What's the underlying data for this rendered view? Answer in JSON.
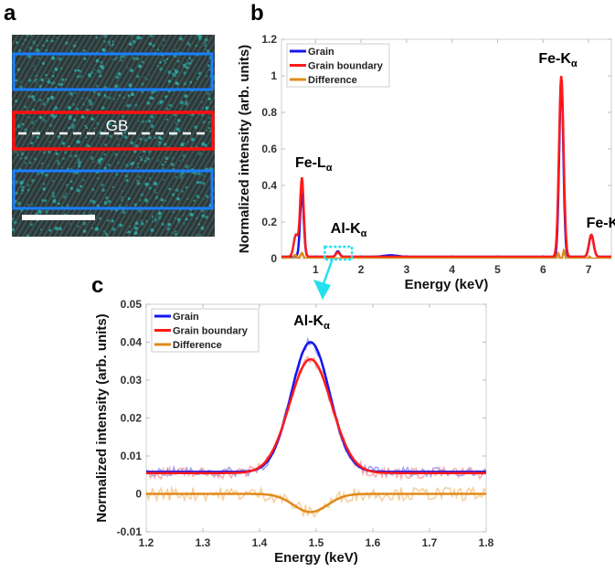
{
  "panel_labels": {
    "a": "a",
    "b": "b",
    "c": "c"
  },
  "micrograph": {
    "gb_label": "GB",
    "box_colors": {
      "grain": "#1a7fff",
      "grain_boundary": "#ff1010"
    },
    "tint": "#2bb5b0"
  },
  "chart_data": [
    {
      "id": "b",
      "type": "line",
      "xlabel": "Energy (keV)",
      "ylabel": "Normalized intensity (arb. units)",
      "xlim": [
        0.25,
        7.5
      ],
      "ylim": [
        0,
        1.2
      ],
      "xticks": [
        1,
        2,
        3,
        4,
        5,
        6,
        7
      ],
      "yticks": [
        0,
        0.2,
        0.4,
        0.6,
        0.8,
        1,
        1.2
      ],
      "ytick_labels": [
        "0",
        "0.2",
        "0.4",
        "0.6",
        "0.8",
        "1",
        "1.2"
      ],
      "legend": "top-left",
      "series": [
        {
          "name": "Grain",
          "color": "#1515f0",
          "baseline": 0.01,
          "peaks": [
            {
              "center": 0.7,
              "height": 0.35,
              "sigma": 0.04
            },
            {
              "center": 1.49,
              "height": 0.03,
              "sigma": 0.04
            },
            {
              "center": 2.65,
              "height": 0.008,
              "sigma": 0.15
            },
            {
              "center": 6.4,
              "height": 0.97,
              "sigma": 0.045
            },
            {
              "center": 7.06,
              "height": 0.12,
              "sigma": 0.05
            }
          ]
        },
        {
          "name": "Grain boundary",
          "color": "#ff1a1a",
          "baseline": 0.01,
          "peaks": [
            {
              "center": 0.57,
              "height": 0.12,
              "sigma": 0.05
            },
            {
              "center": 0.7,
              "height": 0.43,
              "sigma": 0.04
            },
            {
              "center": 1.49,
              "height": 0.025,
              "sigma": 0.04
            },
            {
              "center": 6.4,
              "height": 0.99,
              "sigma": 0.05
            },
            {
              "center": 7.06,
              "height": 0.12,
              "sigma": 0.05
            }
          ]
        },
        {
          "name": "Difference",
          "color": "#e08a1a",
          "baseline": 0.0,
          "peaks": [
            {
              "center": 0.55,
              "height": 0.02,
              "sigma": 0.03
            },
            {
              "center": 0.7,
              "height": 0.03,
              "sigma": 0.03
            },
            {
              "center": 6.33,
              "height": 0.03,
              "sigma": 0.02
            },
            {
              "center": 6.46,
              "height": 0.045,
              "sigma": 0.02
            },
            {
              "center": 7.02,
              "height": 0.01,
              "sigma": 0.02
            }
          ]
        }
      ],
      "annotations": [
        {
          "main": "Fe-L",
          "sub": "α",
          "x": 0.55,
          "y": 0.5
        },
        {
          "main": "Al-K",
          "sub": "α",
          "x": 1.33,
          "y": 0.14
        },
        {
          "main": "Fe-K",
          "sub": "α",
          "x": 5.9,
          "y": 1.07
        },
        {
          "main": "Fe-K",
          "sub": "β",
          "x": 6.95,
          "y": 0.17
        }
      ],
      "zoom_region": {
        "x": [
          1.2,
          1.8
        ],
        "y": [
          -0.005,
          0.065
        ],
        "color": "#22e0f0"
      }
    },
    {
      "id": "c",
      "type": "line",
      "xlabel": "Energy (keV)",
      "ylabel": "Normalized intensity (arb. units)",
      "xlim": [
        1.2,
        1.8
      ],
      "ylim": [
        -0.01,
        0.05
      ],
      "xticks": [
        1.2,
        1.3,
        1.4,
        1.5,
        1.6,
        1.7,
        1.8
      ],
      "xtick_labels": [
        "1.2",
        "1.3",
        "1.4",
        "1.5",
        "1.6",
        "1.7",
        "1.8"
      ],
      "yticks": [
        -0.01,
        0,
        0.01,
        0.02,
        0.03,
        0.04,
        0.05
      ],
      "ytick_labels": [
        "-0.01",
        "0",
        "0.01",
        "0.02",
        "0.03",
        "0.04",
        "0.05"
      ],
      "legend": "top-left",
      "series": [
        {
          "name": "Grain",
          "color": "#1515f0",
          "raw_color": "#8a8af5",
          "baseline": 0.0058,
          "peaks": [
            {
              "center": 1.49,
              "height": 0.0342,
              "sigma": 0.034
            }
          ],
          "noise": 0.0012
        },
        {
          "name": "Grain boundary",
          "color": "#ff1a1a",
          "raw_color": "#f59a9a",
          "baseline": 0.0055,
          "peaks": [
            {
              "center": 1.49,
              "height": 0.03,
              "sigma": 0.037
            }
          ],
          "noise": 0.0015
        },
        {
          "name": "Difference",
          "color": "#e08a1a",
          "raw_color": "#f2c58a",
          "baseline": 0.0,
          "peaks": [
            {
              "center": 1.49,
              "height": -0.0048,
              "sigma": 0.03
            }
          ],
          "noise": 0.0018
        }
      ],
      "annotations": [
        {
          "main": "Al-K",
          "sub": "α",
          "x": 1.46,
          "y": 0.0445
        }
      ]
    }
  ]
}
